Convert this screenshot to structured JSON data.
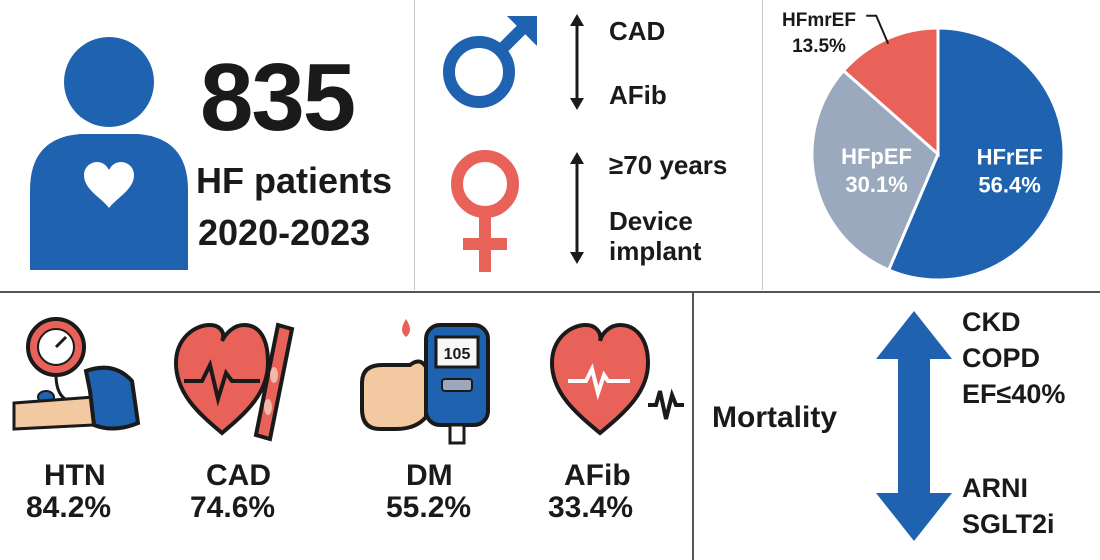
{
  "overview": {
    "patient_count": "835",
    "label_line1": "HF patients",
    "label_line2": "2020-2023"
  },
  "sex": {
    "male_items": [
      "CAD",
      "AFib"
    ],
    "female_items": [
      "≥70 years",
      "Device",
      "implant"
    ]
  },
  "chart_data": {
    "type": "pie",
    "slices": [
      {
        "label": "HFrEF",
        "value": 56.4,
        "display": "56.4%",
        "color": "#1f63b0"
      },
      {
        "label": "HFpEF",
        "value": 30.1,
        "display": "30.1%",
        "color": "#9aa9bd"
      },
      {
        "label": "HFmrEF",
        "value": 13.5,
        "display": "13.5%",
        "color": "#e8625a"
      }
    ]
  },
  "comorbidities": [
    {
      "name": "HTN",
      "pct": "84.2%",
      "icon": "blood-pressure-cuff-icon"
    },
    {
      "name": "CAD",
      "pct": "74.6%",
      "icon": "heart-artery-icon"
    },
    {
      "name": "DM",
      "pct": "55.2%",
      "icon": "glucometer-icon",
      "meter_reading": "105"
    },
    {
      "name": "AFib",
      "pct": "33.4%",
      "icon": "heart-ecg-icon"
    }
  ],
  "mortality": {
    "label": "Mortality",
    "increase": [
      "CKD",
      "COPD",
      "EF≤40%"
    ],
    "decrease": [
      "ARNI",
      "SGLT2i"
    ]
  },
  "colors": {
    "blue": "#1f63b0",
    "red": "#e8625a",
    "gray": "#9aa9bd",
    "text": "#1a1a1a"
  }
}
